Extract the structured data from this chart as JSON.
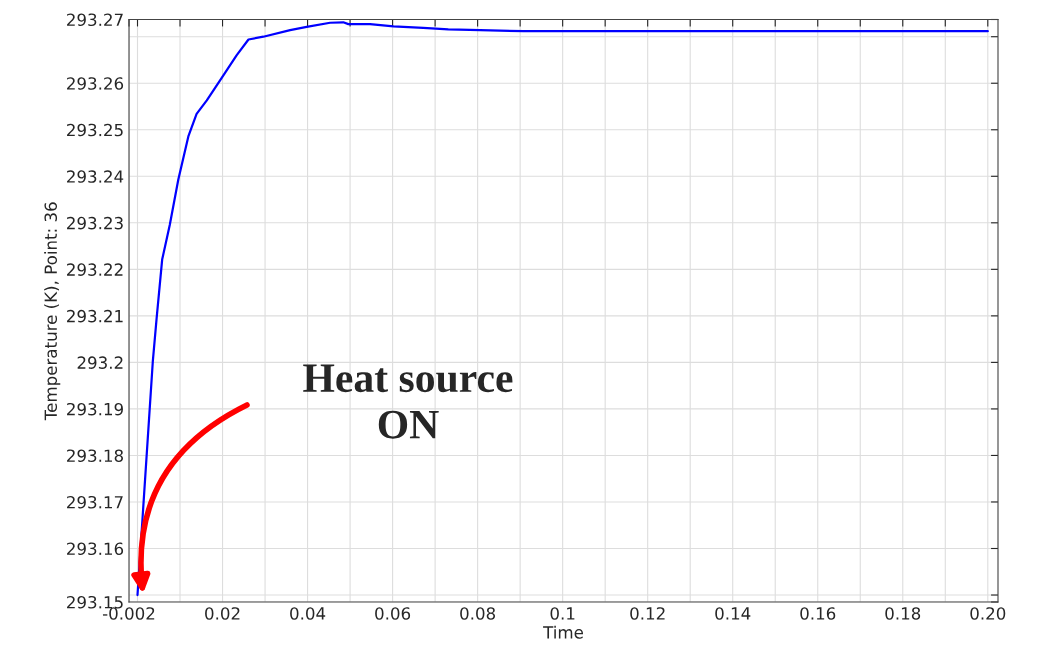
{
  "chart_data": {
    "type": "line",
    "xlabel": "Time",
    "ylabel": "Temperature (K), Point: 36",
    "x": [
      0,
      0.0036,
      0.0045,
      0.0058,
      0.0076,
      0.0096,
      0.012,
      0.0139,
      0.0163,
      0.0202,
      0.0233,
      0.0261,
      0.0296,
      0.0359,
      0.0398,
      0.0453,
      0.0484,
      0.0496,
      0.0547,
      0.0602,
      0.0672,
      0.0731,
      0.0806,
      0.0908,
      0.2
    ],
    "series": [
      {
        "color": "#0000ff",
        "values": [
          293.15,
          293.2002,
          293.2095,
          293.2221,
          293.2296,
          293.2393,
          293.2487,
          293.2534,
          293.2563,
          293.2617,
          293.266,
          293.2694,
          293.27,
          293.2714,
          293.2721,
          293.273,
          293.2731,
          293.2727,
          293.2727,
          293.2722,
          293.2719,
          293.2716,
          293.2714,
          293.2712,
          293.2712
        ]
      }
    ],
    "xlim": [
      -0.002,
      0.2024
    ],
    "ylim": [
      293.1485,
      293.2737
    ],
    "xticks": [
      -0.002,
      {
        "value": 0,
        "label": null
      },
      {
        "value": 0.01,
        "label": null
      },
      0.02,
      {
        "value": 0.03,
        "label": null
      },
      0.04,
      {
        "value": 0.05,
        "label": null
      },
      0.06,
      {
        "value": 0.07,
        "label": null
      },
      0.08,
      {
        "value": 0.09,
        "label": null
      },
      0.1,
      {
        "value": 0.11,
        "label": null
      },
      0.12,
      {
        "value": 0.13,
        "label": null
      },
      0.14,
      {
        "value": 0.15,
        "label": null
      },
      0.16,
      {
        "value": 0.17,
        "label": null
      },
      0.18,
      {
        "value": 0.19,
        "label": null
      },
      {
        "value": 0.2,
        "label": "0.20"
      }
    ],
    "yticks": [
      {
        "value": 293.1485,
        "label": "293.15"
      },
      {
        "value": 293.15,
        "label": null
      },
      293.16,
      293.17,
      293.18,
      293.19,
      293.2,
      293.21,
      293.22,
      293.23,
      293.24,
      293.25,
      293.26,
      {
        "value": 293.27,
        "label": null
      },
      {
        "value": 293.2737,
        "label": "293.27"
      }
    ],
    "grid": true,
    "annotations": [
      "Heat source\nON"
    ]
  }
}
